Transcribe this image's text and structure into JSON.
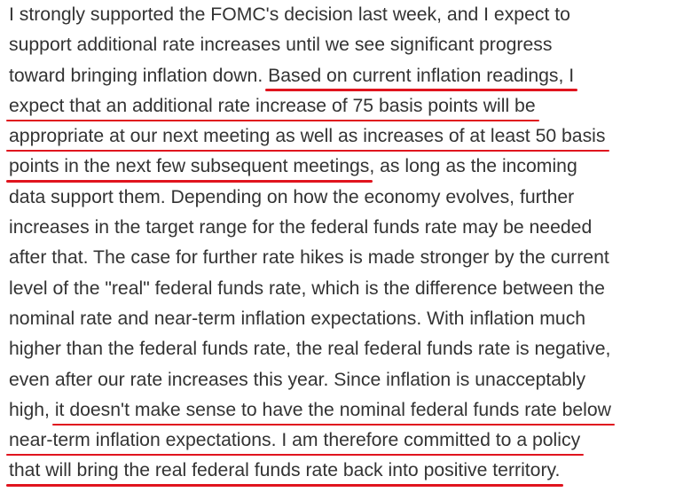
{
  "document": {
    "lines": [
      {
        "segments": [
          {
            "text": "I strongly supported the FOMC's decision last week, and I expect to",
            "hl": false
          }
        ]
      },
      {
        "segments": [
          {
            "text": "support additional rate increases until we see significant progress",
            "hl": false
          }
        ]
      },
      {
        "segments": [
          {
            "text": "toward bringing inflation down. ",
            "hl": false
          },
          {
            "text": "Based on current inflation readings, I",
            "hl": true
          }
        ]
      },
      {
        "segments": [
          {
            "text": "expect that an additional rate increase of 75 basis points will be",
            "hl": true
          }
        ]
      },
      {
        "segments": [
          {
            "text": "appropriate at our next meeting as well as increases of at least 50 basis",
            "hl": true
          }
        ]
      },
      {
        "segments": [
          {
            "text": "points in the next few subsequent meetings",
            "hl": true
          },
          {
            "text": ", as long as the incoming",
            "hl": false
          }
        ]
      },
      {
        "segments": [
          {
            "text": "data support them. Depending on how the economy evolves, further",
            "hl": false
          }
        ]
      },
      {
        "segments": [
          {
            "text": "increases in the target range for the federal funds rate may be needed",
            "hl": false
          }
        ]
      },
      {
        "segments": [
          {
            "text": "after that. The case for further rate hikes is made stronger by the current",
            "hl": false
          }
        ]
      },
      {
        "segments": [
          {
            "text": "level of the \"real\" federal funds rate, which is the difference between the",
            "hl": false
          }
        ]
      },
      {
        "segments": [
          {
            "text": "nominal rate and near-term inflation expectations. With inflation much",
            "hl": false
          }
        ]
      },
      {
        "segments": [
          {
            "text": "higher than the federal funds rate, the real federal funds rate is negative,",
            "hl": false
          }
        ]
      },
      {
        "segments": [
          {
            "text": "even after our rate increases this year. Since inflation is unacceptably",
            "hl": false
          }
        ]
      },
      {
        "segments": [
          {
            "text": "high, ",
            "hl": false
          },
          {
            "text": "it doesn't make sense to have the nominal federal funds rate below",
            "hl": true
          }
        ]
      },
      {
        "segments": [
          {
            "text": "near-term inflation expectations. I am therefore committed to a policy",
            "hl": true
          }
        ]
      },
      {
        "segments": [
          {
            "text": "that will bring the real federal funds rate back into positive territory.",
            "hl": true
          }
        ]
      }
    ]
  },
  "colors": {
    "text": "#333333",
    "underline": "#e0141e",
    "background": "#ffffff"
  }
}
